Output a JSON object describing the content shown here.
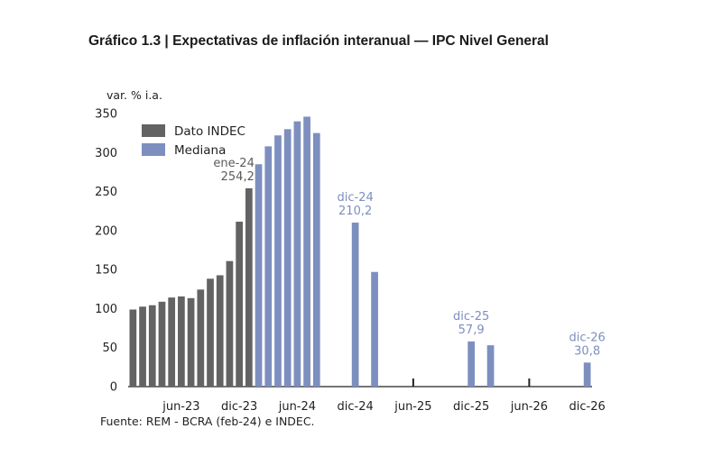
{
  "chart_data": {
    "type": "bar",
    "title": "Gráfico 1.3 | Expectativas de inflación interanual — IPC Nivel General",
    "ylabel": "var. % i.a.",
    "xlabel": "",
    "ylim": [
      0,
      350
    ],
    "yticks": [
      "0",
      "50",
      "100",
      "150",
      "200",
      "250",
      "300",
      "350"
    ],
    "xticks": [
      "jun-23",
      "dic-23",
      "jun-24",
      "dic-24",
      "jun-25",
      "dic-25",
      "jun-26",
      "dic-26"
    ],
    "grid": false,
    "legend_position": "top-left",
    "source": "Fuente: REM - BCRA (feb-24) e INDEC.",
    "categories": [
      "ene-23",
      "feb-23",
      "mar-23",
      "abr-23",
      "may-23",
      "jun-23",
      "jul-23",
      "ago-23",
      "sep-23",
      "oct-23",
      "nov-23",
      "dic-23",
      "ene-24",
      "feb-24",
      "mar-24",
      "abr-24",
      "may-24",
      "jun-24",
      "jul-24",
      "ago-24",
      "sep-24",
      "oct-24",
      "nov-24",
      "dic-24",
      "ene-25",
      "feb-25",
      "mar-25",
      "abr-25",
      "may-25",
      "jun-25",
      "jul-25",
      "ago-25",
      "sep-25",
      "oct-25",
      "nov-25",
      "dic-25",
      "ene-26",
      "feb-26",
      "mar-26",
      "abr-26",
      "may-26",
      "jun-26",
      "jul-26",
      "ago-26",
      "sep-26",
      "oct-26",
      "nov-26",
      "dic-26"
    ],
    "series": [
      {
        "name": "Dato INDEC",
        "color": "#636363",
        "points": [
          {
            "x": "ene-23",
            "y": 98.8
          },
          {
            "x": "feb-23",
            "y": 102.5
          },
          {
            "x": "mar-23",
            "y": 104.3
          },
          {
            "x": "abr-23",
            "y": 108.8
          },
          {
            "x": "may-23",
            "y": 114.2
          },
          {
            "x": "jun-23",
            "y": 115.6
          },
          {
            "x": "jul-23",
            "y": 113.4
          },
          {
            "x": "ago-23",
            "y": 124.4
          },
          {
            "x": "sep-23",
            "y": 138.3
          },
          {
            "x": "oct-23",
            "y": 142.7
          },
          {
            "x": "nov-23",
            "y": 160.9
          },
          {
            "x": "dic-23",
            "y": 211.4
          },
          {
            "x": "ene-24",
            "y": 254.2
          }
        ]
      },
      {
        "name": "Mediana",
        "color": "#7d8fbf",
        "points": [
          {
            "x": "feb-24",
            "y": 285
          },
          {
            "x": "mar-24",
            "y": 308
          },
          {
            "x": "abr-24",
            "y": 322
          },
          {
            "x": "may-24",
            "y": 330
          },
          {
            "x": "jun-24",
            "y": 340
          },
          {
            "x": "jul-24",
            "y": 346
          },
          {
            "x": "ago-24",
            "y": 325
          },
          {
            "x": "dic-24",
            "y": 210.2
          },
          {
            "x": "feb-25",
            "y": 147
          },
          {
            "x": "dic-25",
            "y": 57.9
          },
          {
            "x": "feb-26",
            "y": 53
          },
          {
            "x": "dic-26",
            "y": 30.8
          }
        ]
      }
    ],
    "annotations": [
      {
        "x": "ene-24",
        "label": "ene-24",
        "value": "254,2",
        "color": "#5b5b5b"
      },
      {
        "x": "dic-24",
        "label": "dic-24",
        "value": "210,2",
        "color": "#7d8fbf"
      },
      {
        "x": "dic-25",
        "label": "dic-25",
        "value": "57,9",
        "color": "#7d8fbf"
      },
      {
        "x": "dic-26",
        "label": "dic-26",
        "value": "30,8",
        "color": "#7d8fbf"
      }
    ]
  }
}
